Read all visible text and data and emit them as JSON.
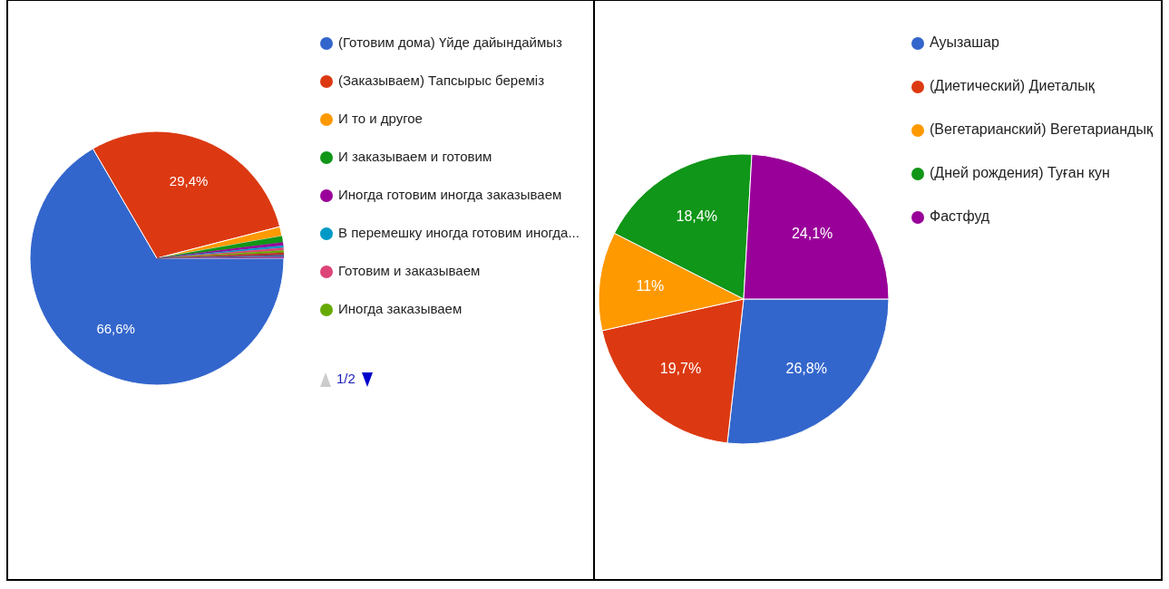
{
  "chart_data": [
    {
      "type": "pie",
      "categories": [
        "(Готовим дома) Үйде дайындаймыз",
        "(Заказываем) Тапсырыс береміз",
        "И то и другое",
        "И заказываем и готовим",
        "Иногда готовим иногда заказываем",
        "В перемешку иногда готовим иногда...",
        "Готовим и заказываем",
        "Иногда заказываем",
        null,
        null,
        null
      ],
      "values": [
        66.6,
        29.4,
        1.2,
        0.8,
        0.4,
        0.3,
        0.3,
        0.3,
        0.3,
        0.2,
        0.2
      ],
      "colors": [
        "#3366cc",
        "#dc3912",
        "#ff9900",
        "#109618",
        "#990099",
        "#0099c6",
        "#dd4477",
        "#66aa00",
        "#b82e2e",
        "#316395",
        "#994499"
      ],
      "value_labels": [
        "66,6%",
        "29,4%",
        null,
        null,
        null,
        null,
        null,
        null,
        null,
        null,
        null
      ],
      "legend": "right",
      "annotations": [
        "1/2"
      ]
    },
    {
      "type": "pie",
      "categories": [
        "Ауызашар",
        "(Диетический) Диеталық",
        "(Вегетарианский) Вегетариандық",
        "(Дней рождения) Туған кун",
        "Фастфуд"
      ],
      "values": [
        26.8,
        19.7,
        11,
        18.4,
        24.1
      ],
      "colors": [
        "#3366cc",
        "#dc3912",
        "#ff9900",
        "#109618",
        "#990099"
      ],
      "value_labels": [
        "26,8%",
        "19,7%",
        "11%",
        "18,4%",
        "24,1%"
      ],
      "legend": "right"
    }
  ]
}
